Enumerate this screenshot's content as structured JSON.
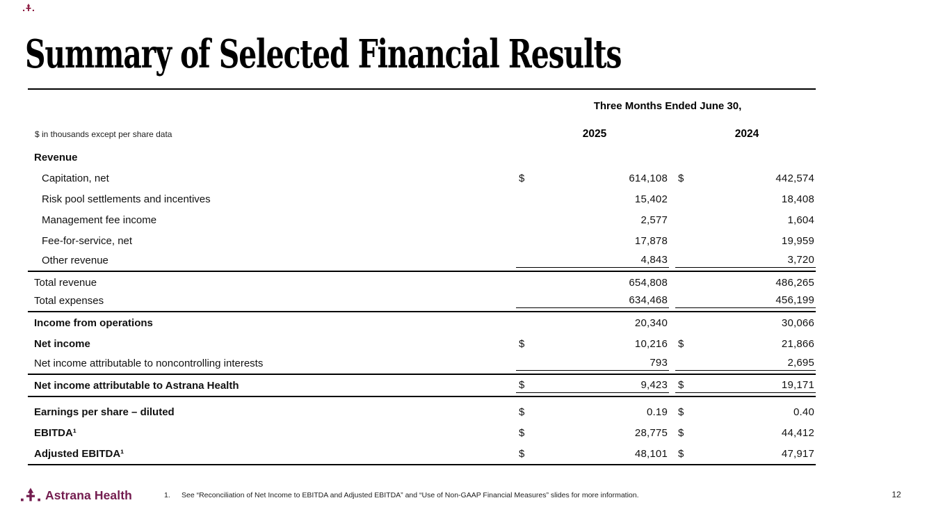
{
  "slide": {
    "title": "Summary of Selected Financial Results",
    "page_number": "12"
  },
  "header": {
    "period": "Three Months Ended June 30,",
    "units_note": "$ in thousands except per share data",
    "year_col_1": "2025",
    "year_col_2": "2024"
  },
  "table": {
    "rows": [
      {
        "label": "Revenue",
        "bold": true,
        "dollar1": "",
        "val1": "",
        "dollar2": "",
        "val2": ""
      },
      {
        "label": "Capitation, net",
        "indent": true,
        "dollar1": "$",
        "val1": "614,108",
        "dollar2": "$",
        "val2": "442,574"
      },
      {
        "label": "Risk pool settlements and incentives",
        "indent": true,
        "val1": "15,402",
        "val2": "18,408"
      },
      {
        "label": "Management fee income",
        "indent": true,
        "val1": "2,577",
        "val2": "1,604"
      },
      {
        "label": "Fee-for-service, net",
        "indent": true,
        "val1": "17,878",
        "val2": "19,959"
      },
      {
        "label": "Other revenue",
        "indent": true,
        "val1": "4,843",
        "val2": "3,720",
        "underline": true,
        "rule": true
      },
      {
        "label": "Total revenue",
        "val1": "654,808",
        "val2": "486,265"
      },
      {
        "label": "Total expenses",
        "val1": "634,468",
        "val2": "456,199",
        "underline": true,
        "rule": true
      },
      {
        "label": "Income from operations",
        "bold": true,
        "val1": "20,340",
        "val2": "30,066"
      },
      {
        "label": "Net income",
        "bold": true,
        "dollar1": "$",
        "val1": "10,216",
        "dollar2": "$",
        "val2": "21,866"
      },
      {
        "label": "Net income attributable to noncontrolling interests",
        "val1": "793",
        "val2": "2,695",
        "underline": true,
        "rule": true
      },
      {
        "label": "Net income attributable to Astrana Health",
        "bold": true,
        "dollar1": "$",
        "val1": "9,423",
        "dollar2": "$",
        "val2": "19,171",
        "underline": true,
        "rule": true
      },
      {
        "label": "Earnings per share – diluted",
        "bold": true,
        "dollar1": "$",
        "val1": "0.19",
        "dollar2": "$",
        "val2": "0.40"
      },
      {
        "label": "EBITDA¹",
        "bold": true,
        "dollar1": "$",
        "val1": "28,775",
        "dollar2": "$",
        "val2": "44,412"
      },
      {
        "label": "Adjusted EBITDA¹",
        "bold": true,
        "dollar1": "$",
        "val1": "48,101",
        "dollar2": "$",
        "val2": "47,917",
        "rule": true
      }
    ]
  },
  "footer": {
    "logo_text": "Astrana Health",
    "footnote_marker": "1.",
    "footnote_text": "See “Reconciliation of Net Income to EBITDA and Adjusted EBITDA” and “Use of Non-GAAP Financial Measures” slides for more information."
  },
  "colors": {
    "brand": "#731C4F",
    "text": "#111111"
  }
}
